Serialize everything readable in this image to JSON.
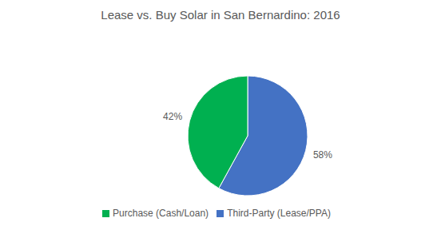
{
  "chart_data": {
    "type": "pie",
    "title": "Lease vs. Buy Solar in San Bernardino: 2016",
    "categories": [
      "Third-Party (Lease/PPA)",
      "Purchase (Cash/Loan)"
    ],
    "values": [
      58,
      42
    ],
    "value_labels": [
      "58%",
      "42%"
    ],
    "colors": [
      "#4472c4",
      "#00b050"
    ],
    "data_labels": true,
    "legend": "bottom"
  }
}
